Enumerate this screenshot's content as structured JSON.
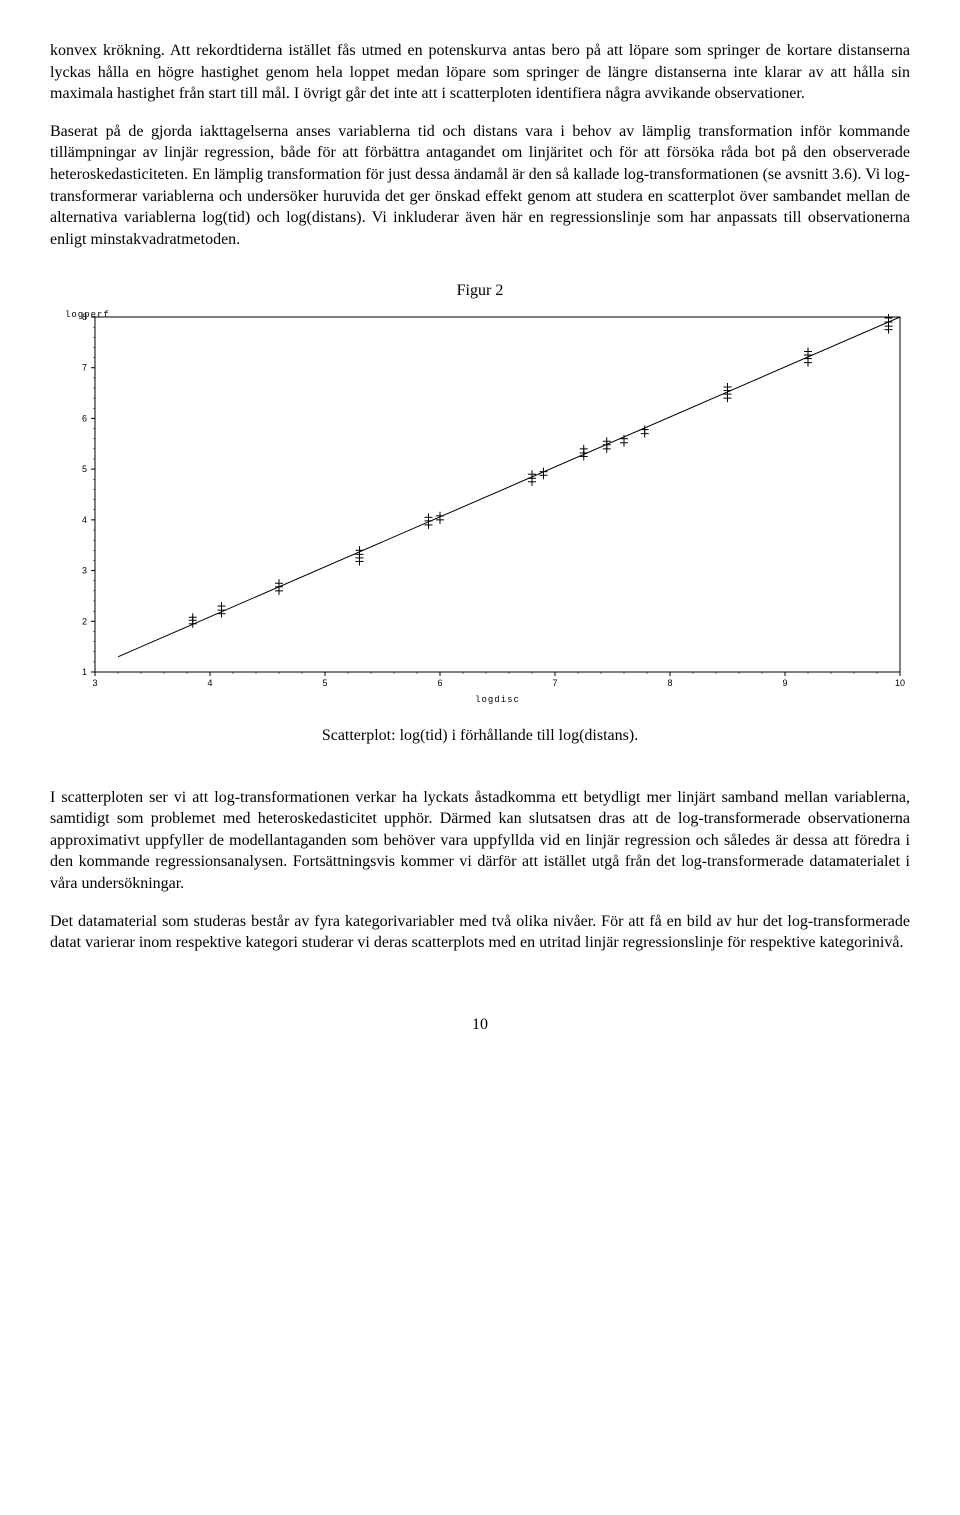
{
  "paragraphs": {
    "p1": "konvex krökning. Att rekordtiderna istället fås utmed en potenskurva antas bero på att löpare som springer de kortare distanserna lyckas hålla en högre hastighet genom hela loppet medan löpare som springer de längre distanserna inte klarar av att hålla sin maximala hastighet från start till mål. I övrigt går det inte att i scatterploten identifiera några avvikande observationer.",
    "p2": "Baserat på de gjorda iakttagelserna anses variablerna tid och distans vara i behov av lämplig transformation inför kommande tillämpningar av linjär regression, både för att förbättra antagandet om linjäritet och för att försöka råda bot på den observerade heteroskedasticiteten. En lämplig transformation för just dessa ändamål är den så kallade log-transformationen (se avsnitt 3.6). Vi log-transformerar variablerna och undersöker huruvida det ger önskad effekt genom att studera en scatterplot över sambandet mellan de alternativa variablerna log(tid) och log(distans). Vi inkluderar även här en regressionslinje som har anpassats till observationerna enligt minstakvadratmetoden.",
    "p3": "I scatterploten ser vi att log-transformationen verkar ha lyckats åstadkomma ett betydligt mer linjärt samband mellan variablerna, samtidigt som problemet med heteroskedasticitet upphör. Därmed kan slutsatsen dras att de log-transformerade observationerna approximativt uppfyller de modellantaganden som behöver vara uppfyllda vid en linjär regression och således är dessa att föredra i den kommande regressionsanalysen. Fortsättningsvis kommer vi därför att istället utgå från det log-transformerade datamaterialet i våra undersökningar.",
    "p4": "Det datamaterial som studeras består av fyra kategorivariabler med två olika nivåer. För att få en bild av hur det log-transformerade datat varierar inom respektive kategori studerar vi deras scatterplots med en utritad linjär regressionslinje för respektive kategorinivå."
  },
  "chart": {
    "title": "Figur 2",
    "caption": "Scatterplot: log(tid) i förhållande till log(distans).",
    "ylabel": "logperf",
    "xlabel": "logdisc",
    "xlim": [
      3,
      10
    ],
    "ylim": [
      1,
      8
    ],
    "xticks": [
      3,
      4,
      5,
      6,
      7,
      8,
      9,
      10
    ],
    "yticks": [
      1,
      2,
      3,
      4,
      5,
      6,
      7,
      8
    ],
    "background_color": "#ffffff",
    "axis_color": "#000000",
    "line_color": "#000000",
    "marker_color": "#000000",
    "marker": "+",
    "marker_size": 8,
    "line_width": 1,
    "line": {
      "x1": 3.2,
      "y1": 1.3,
      "x2": 10.0,
      "y2": 8.0
    },
    "points": [
      {
        "x": 3.85,
        "y": 1.95
      },
      {
        "x": 3.85,
        "y": 2.02
      },
      {
        "x": 3.85,
        "y": 2.08
      },
      {
        "x": 4.1,
        "y": 2.15
      },
      {
        "x": 4.1,
        "y": 2.22
      },
      {
        "x": 4.1,
        "y": 2.3
      },
      {
        "x": 4.6,
        "y": 2.6
      },
      {
        "x": 4.6,
        "y": 2.68
      },
      {
        "x": 4.6,
        "y": 2.75
      },
      {
        "x": 5.3,
        "y": 3.25
      },
      {
        "x": 5.3,
        "y": 3.32
      },
      {
        "x": 5.3,
        "y": 3.4
      },
      {
        "x": 5.3,
        "y": 3.18
      },
      {
        "x": 5.9,
        "y": 3.9
      },
      {
        "x": 5.9,
        "y": 3.98
      },
      {
        "x": 5.9,
        "y": 4.05
      },
      {
        "x": 6.0,
        "y": 4.0
      },
      {
        "x": 6.0,
        "y": 4.08
      },
      {
        "x": 6.8,
        "y": 4.75
      },
      {
        "x": 6.8,
        "y": 4.82
      },
      {
        "x": 6.8,
        "y": 4.9
      },
      {
        "x": 6.9,
        "y": 4.88
      },
      {
        "x": 6.9,
        "y": 4.95
      },
      {
        "x": 7.25,
        "y": 5.25
      },
      {
        "x": 7.25,
        "y": 5.32
      },
      {
        "x": 7.25,
        "y": 5.4
      },
      {
        "x": 7.45,
        "y": 5.4
      },
      {
        "x": 7.45,
        "y": 5.48
      },
      {
        "x": 7.45,
        "y": 5.55
      },
      {
        "x": 7.6,
        "y": 5.52
      },
      {
        "x": 7.6,
        "y": 5.6
      },
      {
        "x": 7.78,
        "y": 5.7
      },
      {
        "x": 7.78,
        "y": 5.78
      },
      {
        "x": 8.5,
        "y": 6.4
      },
      {
        "x": 8.5,
        "y": 6.48
      },
      {
        "x": 8.5,
        "y": 6.55
      },
      {
        "x": 8.5,
        "y": 6.62
      },
      {
        "x": 9.2,
        "y": 7.1
      },
      {
        "x": 9.2,
        "y": 7.18
      },
      {
        "x": 9.2,
        "y": 7.25
      },
      {
        "x": 9.2,
        "y": 7.32
      },
      {
        "x": 9.9,
        "y": 7.75
      },
      {
        "x": 9.9,
        "y": 7.82
      },
      {
        "x": 9.9,
        "y": 7.9
      },
      {
        "x": 9.9,
        "y": 7.98
      }
    ]
  },
  "pagenum": "10"
}
